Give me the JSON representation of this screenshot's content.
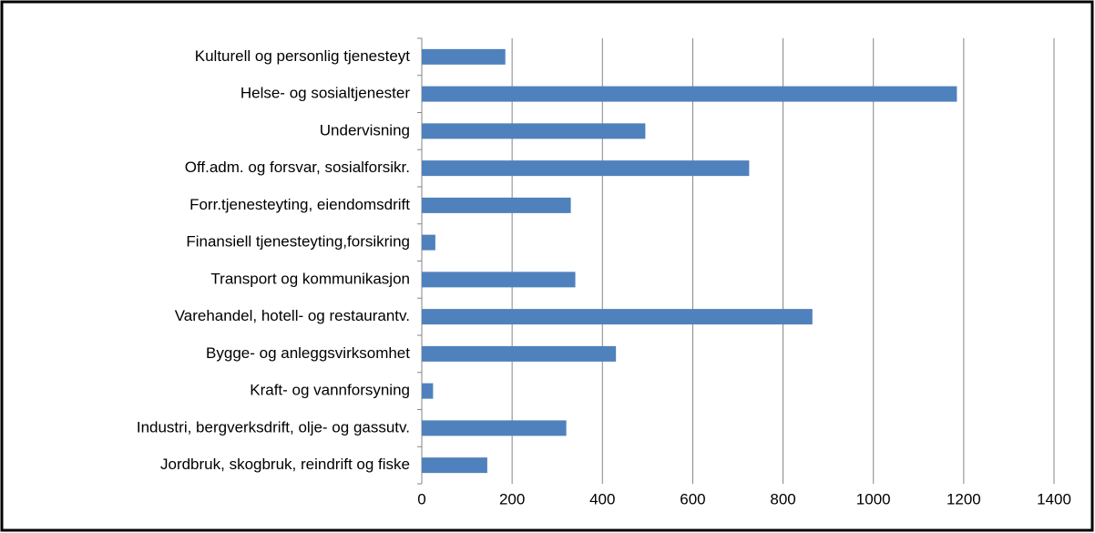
{
  "chart_data": {
    "type": "bar",
    "orientation": "horizontal",
    "categories": [
      "Jordbruk, skogbruk, reindrift og fiske",
      "Industri, bergverksdrift, olje- og gassutv.",
      "Kraft- og vannforsyning",
      "Bygge- og anleggsvirksomhet",
      "Varehandel, hotell- og restaurantv.",
      "Transport og kommunikasjon",
      "Finansiell tjenesteyting,forsikring",
      "Forr.tjenesteyting, eiendomsdrift",
      "Off.adm. og forsvar, sosialforsikr.",
      "Undervisning",
      "Helse- og sosialtjenester",
      "Kulturell og personlig tjenesteyt"
    ],
    "values": [
      145,
      320,
      25,
      430,
      865,
      340,
      30,
      330,
      725,
      495,
      1185,
      185
    ],
    "color": "#4f81bd",
    "xlim": [
      0,
      1400
    ],
    "xticks": [
      0,
      200,
      400,
      600,
      800,
      1000,
      1200,
      1400
    ],
    "grid": true
  }
}
